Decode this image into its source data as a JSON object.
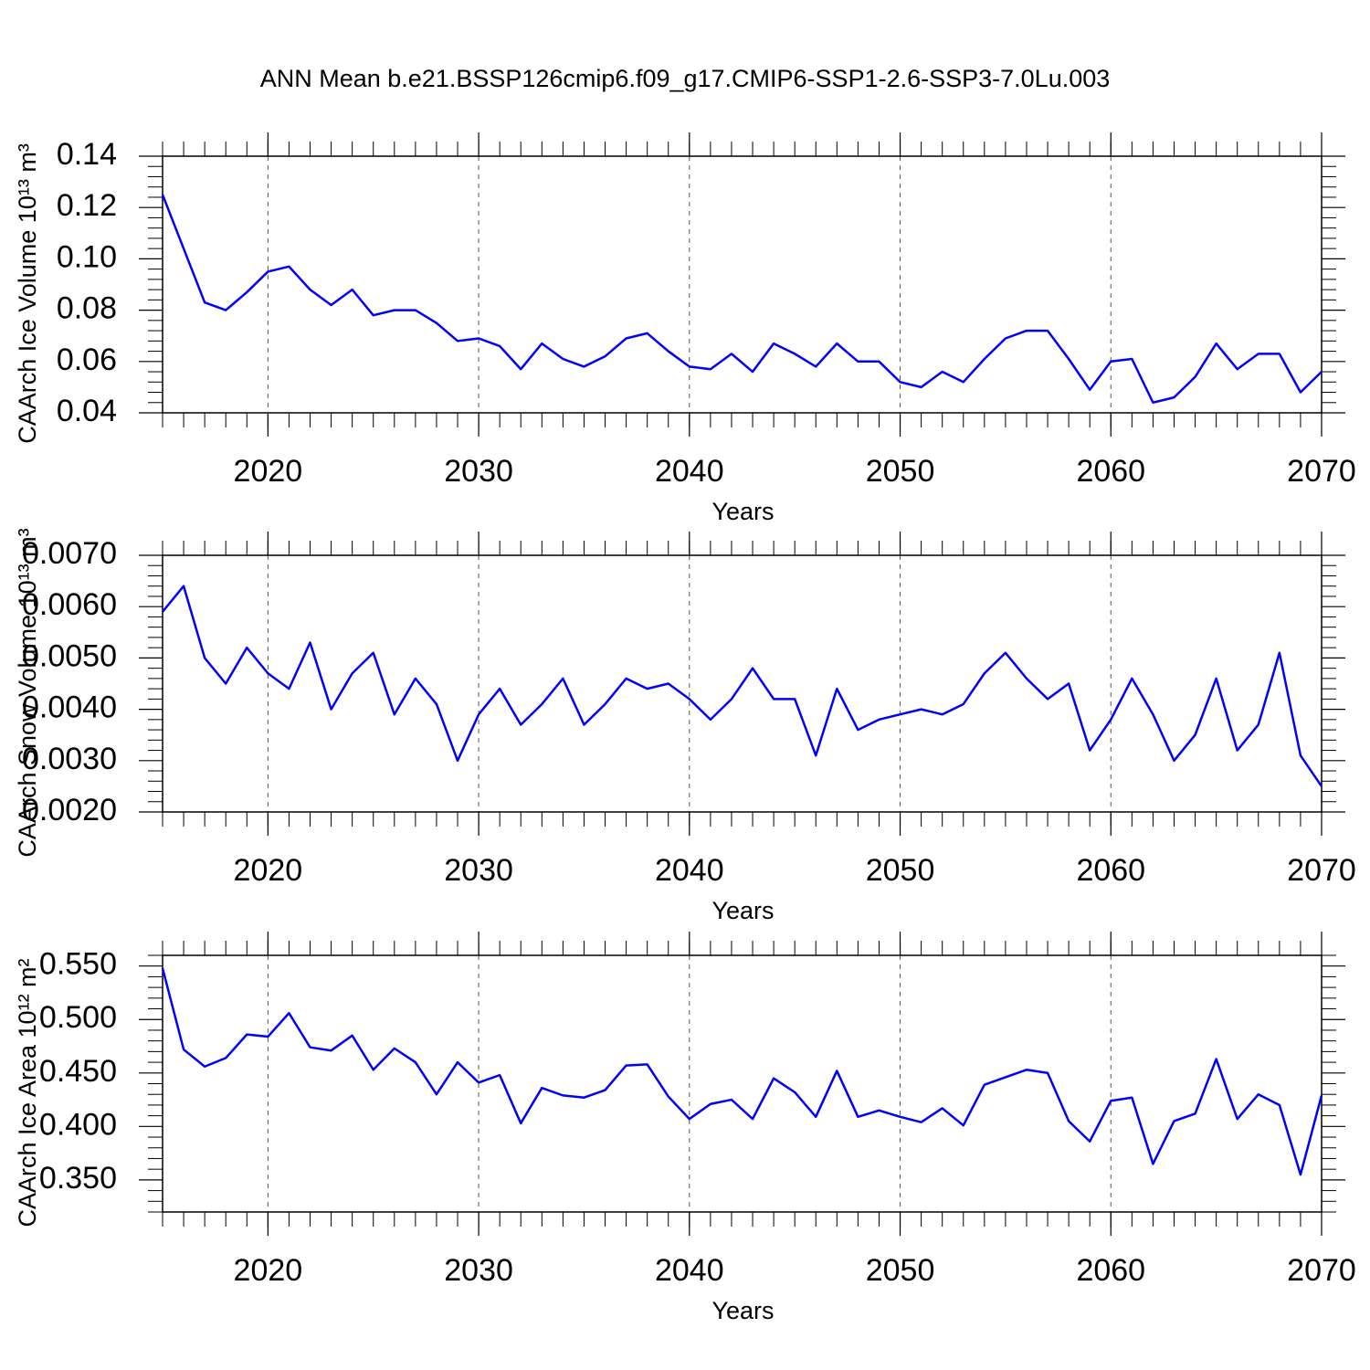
{
  "title": "ANN Mean b.e21.BSSP126cmip6.f09_g17.CMIP6-SSP1-2.6-SSP3-7.0Lu.003",
  "chart_data": [
    {
      "type": "line",
      "xlabel": "Years",
      "ylabel": "CAArch Ice Volume 10¹³ m³",
      "x": [
        2015,
        2016,
        2017,
        2018,
        2019,
        2020,
        2021,
        2022,
        2023,
        2024,
        2025,
        2026,
        2027,
        2028,
        2029,
        2030,
        2031,
        2032,
        2033,
        2034,
        2035,
        2036,
        2037,
        2038,
        2039,
        2040,
        2041,
        2042,
        2043,
        2044,
        2045,
        2046,
        2047,
        2048,
        2049,
        2050,
        2051,
        2052,
        2053,
        2054,
        2055,
        2056,
        2057,
        2058,
        2059,
        2060,
        2061,
        2062,
        2063,
        2064,
        2065,
        2066,
        2067,
        2068,
        2069,
        2070
      ],
      "xlim": [
        2015,
        2070
      ],
      "xticks": [
        2020,
        2030,
        2040,
        2050,
        2060,
        2070
      ],
      "xgrid": true,
      "ylim": [
        0.04,
        0.14
      ],
      "yticks": [
        0.04,
        0.06,
        0.08,
        {
          "value": 0.1,
          "label": "0.10"
        },
        0.12,
        0.14
      ],
      "series": [
        {
          "color": "#0000ff",
          "values": [
            0.125,
            0.104,
            0.083,
            0.08,
            0.087,
            0.095,
            0.097,
            0.088,
            0.082,
            0.088,
            0.078,
            0.08,
            0.08,
            0.075,
            0.068,
            0.069,
            0.066,
            0.057,
            0.067,
            0.061,
            0.058,
            0.062,
            0.069,
            0.071,
            0.064,
            0.058,
            0.057,
            0.063,
            0.056,
            0.067,
            0.063,
            0.058,
            0.067,
            0.06,
            0.06,
            0.052,
            0.05,
            0.056,
            0.052,
            0.061,
            0.069,
            0.072,
            0.072,
            0.061,
            0.049,
            0.06,
            0.061,
            0.044,
            0.046,
            0.054,
            0.067,
            0.057,
            0.063,
            0.063,
            0.048,
            0.056
          ]
        }
      ]
    },
    {
      "type": "line",
      "xlabel": "Years",
      "ylabel": "CAArch Snow Volume 10¹³ m³",
      "x": [
        2015,
        2016,
        2017,
        2018,
        2019,
        2020,
        2021,
        2022,
        2023,
        2024,
        2025,
        2026,
        2027,
        2028,
        2029,
        2030,
        2031,
        2032,
        2033,
        2034,
        2035,
        2036,
        2037,
        2038,
        2039,
        2040,
        2041,
        2042,
        2043,
        2044,
        2045,
        2046,
        2047,
        2048,
        2049,
        2050,
        2051,
        2052,
        2053,
        2054,
        2055,
        2056,
        2057,
        2058,
        2059,
        2060,
        2061,
        2062,
        2063,
        2064,
        2065,
        2066,
        2067,
        2068,
        2069,
        2070
      ],
      "xlim": [
        2015,
        2070
      ],
      "xticks": [
        2020,
        2030,
        2040,
        2050,
        2060,
        2070
      ],
      "xgrid": true,
      "ylim": [
        0.002,
        0.007
      ],
      "yticks": [
        {
          "value": 0.002,
          "label": "0.0020"
        },
        {
          "value": 0.003,
          "label": "0.0030"
        },
        {
          "value": 0.004,
          "label": "0.0040"
        },
        {
          "value": 0.005,
          "label": "0.0050"
        },
        {
          "value": 0.006,
          "label": "0.0060"
        },
        {
          "value": 0.007,
          "label": "0.0070"
        }
      ],
      "series": [
        {
          "color": "#0000ff",
          "values": [
            0.0059,
            0.0064,
            0.005,
            0.0045,
            0.0052,
            0.0047,
            0.0044,
            0.0053,
            0.004,
            0.0047,
            0.0051,
            0.0039,
            0.0046,
            0.0041,
            0.003,
            0.0039,
            0.0044,
            0.0037,
            0.0041,
            0.0046,
            0.0037,
            0.0041,
            0.0046,
            0.0044,
            0.0045,
            0.0042,
            0.0038,
            0.0042,
            0.0048,
            0.0042,
            0.0042,
            0.0031,
            0.0044,
            0.0036,
            0.0038,
            0.0039,
            0.004,
            0.0039,
            0.0041,
            0.0047,
            0.0051,
            0.0046,
            0.0042,
            0.0045,
            0.0032,
            0.0038,
            0.0046,
            0.0039,
            0.003,
            0.0035,
            0.0046,
            0.0032,
            0.0037,
            0.0051,
            0.0031,
            0.0025
          ]
        }
      ]
    },
    {
      "type": "line",
      "xlabel": "Years",
      "ylabel": "CAArch Ice Area 10¹² m²",
      "x": [
        2015,
        2016,
        2017,
        2018,
        2019,
        2020,
        2021,
        2022,
        2023,
        2024,
        2025,
        2026,
        2027,
        2028,
        2029,
        2030,
        2031,
        2032,
        2033,
        2034,
        2035,
        2036,
        2037,
        2038,
        2039,
        2040,
        2041,
        2042,
        2043,
        2044,
        2045,
        2046,
        2047,
        2048,
        2049,
        2050,
        2051,
        2052,
        2053,
        2054,
        2055,
        2056,
        2057,
        2058,
        2059,
        2060,
        2061,
        2062,
        2063,
        2064,
        2065,
        2066,
        2067,
        2068,
        2069,
        2070
      ],
      "xlim": [
        2015,
        2070
      ],
      "xticks": [
        2020,
        2030,
        2040,
        2050,
        2060,
        2070
      ],
      "xgrid": true,
      "ylim": [
        0.32,
        0.56
      ],
      "yticks": [
        {
          "value": 0.35,
          "label": "0.350"
        },
        {
          "value": 0.4,
          "label": "0.400"
        },
        {
          "value": 0.45,
          "label": "0.450"
        },
        {
          "value": 0.5,
          "label": "0.500"
        },
        {
          "value": 0.55,
          "label": "0.550"
        }
      ],
      "series": [
        {
          "color": "#0000ff",
          "values": [
            0.548,
            0.472,
            0.456,
            0.464,
            0.486,
            0.484,
            0.506,
            0.474,
            0.471,
            0.485,
            0.453,
            0.473,
            0.46,
            0.43,
            0.46,
            0.441,
            0.448,
            0.403,
            0.436,
            0.429,
            0.427,
            0.434,
            0.457,
            0.458,
            0.428,
            0.407,
            0.421,
            0.425,
            0.407,
            0.445,
            0.432,
            0.409,
            0.452,
            0.409,
            0.415,
            0.409,
            0.404,
            0.417,
            0.401,
            0.439,
            0.446,
            0.453,
            0.45,
            0.405,
            0.386,
            0.424,
            0.427,
            0.365,
            0.405,
            0.412,
            0.463,
            0.407,
            0.43,
            0.42,
            0.355,
            0.429
          ]
        }
      ]
    }
  ]
}
